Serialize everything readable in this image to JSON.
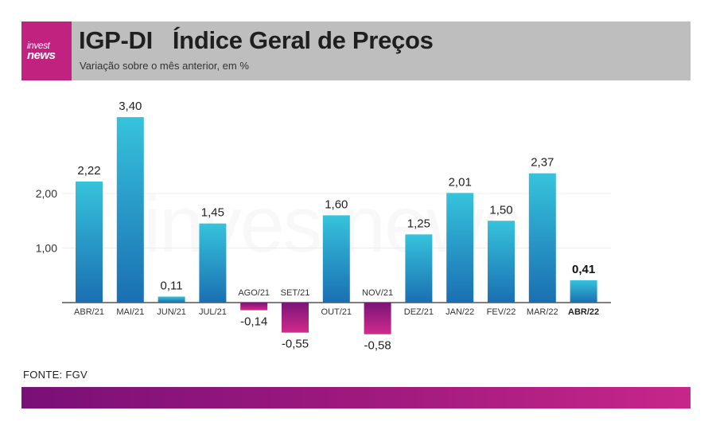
{
  "header": {
    "logo_line1": "invest",
    "logo_line2": "news",
    "title": "IGP-DI   Índice Geral de Preços",
    "subtitle": "Variação sobre o mês anterior, em %"
  },
  "watermark": "investnews",
  "source": "FONTE: FGV",
  "colors": {
    "positive_top": "#36c3dc",
    "positive_bottom": "#1a6fb2",
    "negative_top": "#7a1578",
    "negative_bottom": "#d12a8c",
    "header_bg": "#bebebe",
    "brand_pink": "#c2227f"
  },
  "chart_data": {
    "type": "bar",
    "title": "IGP-DI   Índice Geral de Preços",
    "subtitle": "Variação sobre o mês anterior, em %",
    "categories": [
      "ABR/21",
      "MAI/21",
      "JUN/21",
      "JUL/21",
      "AGO/21",
      "SET/21",
      "OUT/21",
      "NOV/21",
      "DEZ/21",
      "JAN/22",
      "FEV/22",
      "MAR/22",
      "ABR/22"
    ],
    "values": [
      2.22,
      3.4,
      0.11,
      1.45,
      -0.14,
      -0.55,
      1.6,
      -0.58,
      1.25,
      2.01,
      1.5,
      2.37,
      0.41
    ],
    "value_labels": [
      "2,22",
      "3,40",
      "0,11",
      "1,45",
      "-0,14",
      "-0,55",
      "1,60",
      "-0,58",
      "1,25",
      "2,01",
      "1,50",
      "2,37",
      "0,41"
    ],
    "highlight_index": 12,
    "yticks": [
      1.0,
      2.0
    ],
    "ytick_labels": [
      "1,00",
      "2,00"
    ],
    "ylim": [
      -0.6,
      3.5
    ],
    "grid": true
  }
}
